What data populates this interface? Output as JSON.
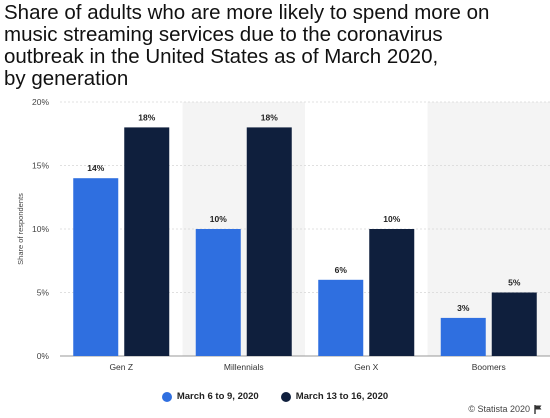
{
  "chart_data": {
    "type": "bar",
    "title": "Share of adults who are more likely to spend more on music streaming services due to the coronavirus outbreak in the United States as of March 2020, by generation",
    "title_lines": [
      "Share of adults who are more likely to spend more on",
      "music streaming services due to the coronavirus",
      " outbreak in the United States as of March 2020,",
      " by generation"
    ],
    "categories": [
      "Gen Z",
      "Millennials",
      "Gen X",
      "Boomers"
    ],
    "series": [
      {
        "name": "March 6 to 9, 2020",
        "values": [
          14,
          10,
          6,
          3
        ],
        "labels": [
          "14%",
          "10%",
          "6%",
          "3%"
        ],
        "color": "#2f6fe0"
      },
      {
        "name": "March 13 to 16, 2020",
        "values": [
          18,
          18,
          10,
          5
        ],
        "labels": [
          "18%",
          "18%",
          "10%",
          "5%"
        ],
        "color": "#0f1f3d"
      }
    ],
    "ylabel": "Share of respondents",
    "xlabel": "",
    "ylim": [
      0,
      20
    ],
    "yticks": [
      0,
      5,
      10,
      15,
      20
    ],
    "ytick_labels": [
      "0%",
      "5%",
      "10%",
      "15%",
      "20%"
    ],
    "grid": true,
    "legend_position": "bottom",
    "band_color": "#f4f4f4"
  },
  "credit": {
    "text": "© Statista 2020",
    "icon": "flag-icon"
  }
}
